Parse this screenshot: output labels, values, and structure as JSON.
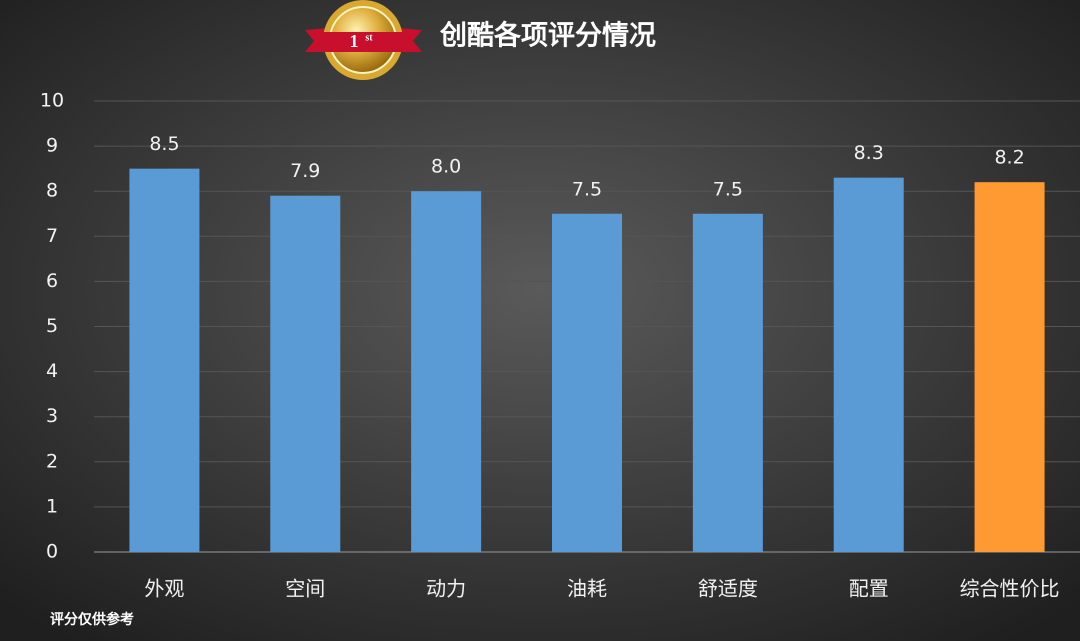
{
  "chart_data": {
    "type": "bar",
    "title": "创酷各项评分情况",
    "badge": "1",
    "badge_suffix": "st",
    "note": "评分仅供参考",
    "categories": [
      "外观",
      "空间",
      "动力",
      "油耗",
      "舒适度",
      "配置",
      "综合性价比"
    ],
    "values": [
      8.5,
      7.9,
      8.0,
      7.5,
      7.5,
      8.3,
      8.2
    ],
    "value_labels": [
      "8.5",
      "7.9",
      "8.0",
      "7.5",
      "7.5",
      "8.3",
      "8.2"
    ],
    "colors": [
      "#5b9bd5",
      "#5b9bd5",
      "#5b9bd5",
      "#5b9bd5",
      "#5b9bd5",
      "#5b9bd5",
      "#ff9a33"
    ],
    "ylim": [
      0,
      10
    ],
    "yticks": [
      0,
      1,
      2,
      3,
      4,
      5,
      6,
      7,
      8,
      9,
      10
    ],
    "grid": true
  }
}
